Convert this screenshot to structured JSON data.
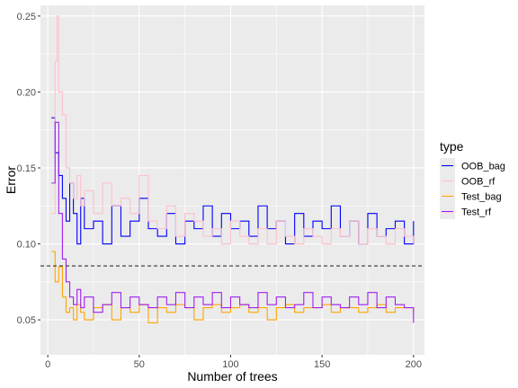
{
  "chart_data": {
    "type": "line",
    "step": true,
    "xlabel": "Number of trees",
    "ylabel": "Error",
    "xlim": [
      -4,
      206
    ],
    "ylim": [
      0.027,
      0.257
    ],
    "x_ticks": [
      0,
      50,
      100,
      150,
      200
    ],
    "y_ticks": [
      0.05,
      0.1,
      0.15,
      0.2,
      0.25
    ],
    "y_tick_labels": [
      "0.05",
      "0.10",
      "0.15",
      "0.20",
      "0.25"
    ],
    "grid": true,
    "background": "#ebebeb",
    "reference_line": {
      "y": 0.0855,
      "style": "dashed",
      "color": "#333333"
    },
    "legend": {
      "title": "type",
      "position": "right"
    },
    "series": [
      {
        "name": "OOB_bag",
        "color": "#0000ff",
        "x": [
          2,
          4,
          6,
          8,
          10,
          12,
          14,
          16,
          18,
          20,
          25,
          30,
          35,
          40,
          45,
          50,
          55,
          60,
          65,
          70,
          75,
          80,
          85,
          90,
          95,
          100,
          105,
          110,
          115,
          120,
          125,
          130,
          135,
          140,
          145,
          150,
          155,
          160,
          165,
          170,
          175,
          180,
          185,
          190,
          195,
          200
        ],
        "values": [
          0.183,
          0.16,
          0.145,
          0.13,
          0.115,
          0.14,
          0.12,
          0.1,
          0.13,
          0.11,
          0.115,
          0.1,
          0.125,
          0.105,
          0.115,
          0.13,
          0.11,
          0.105,
          0.12,
          0.1,
          0.115,
          0.11,
          0.125,
          0.105,
          0.12,
          0.11,
          0.115,
          0.105,
          0.125,
          0.11,
          0.115,
          0.1,
          0.12,
          0.105,
          0.115,
          0.11,
          0.125,
          0.105,
          0.115,
          0.1,
          0.12,
          0.105,
          0.11,
          0.115,
          0.1,
          0.115
        ]
      },
      {
        "name": "OOB_rf",
        "color": "#ffc0cb",
        "x": [
          2,
          4,
          5,
          6,
          8,
          10,
          12,
          14,
          16,
          18,
          20,
          25,
          30,
          35,
          40,
          45,
          50,
          55,
          60,
          65,
          70,
          75,
          80,
          85,
          90,
          95,
          100,
          105,
          110,
          115,
          120,
          125,
          130,
          135,
          140,
          145,
          150,
          155,
          160,
          165,
          170,
          175,
          180,
          185,
          190,
          195,
          200
        ],
        "values": [
          0.12,
          0.22,
          0.25,
          0.2,
          0.185,
          0.15,
          0.14,
          0.13,
          0.145,
          0.125,
          0.135,
          0.12,
          0.14,
          0.125,
          0.13,
          0.12,
          0.145,
          0.115,
          0.11,
          0.125,
          0.105,
          0.12,
          0.115,
          0.105,
          0.11,
          0.1,
          0.115,
          0.105,
          0.1,
          0.11,
          0.1,
          0.115,
          0.105,
          0.1,
          0.11,
          0.105,
          0.1,
          0.11,
          0.105,
          0.115,
          0.1,
          0.11,
          0.105,
          0.1,
          0.11,
          0.105,
          0.1
        ]
      },
      {
        "name": "Test_bag",
        "color": "#ffa500",
        "x": [
          2,
          4,
          6,
          8,
          10,
          12,
          14,
          16,
          18,
          20,
          25,
          30,
          35,
          40,
          45,
          50,
          55,
          60,
          65,
          70,
          75,
          80,
          85,
          90,
          95,
          100,
          105,
          110,
          115,
          120,
          125,
          130,
          135,
          140,
          145,
          150,
          155,
          160,
          165,
          170,
          175,
          180,
          185,
          190,
          195,
          200
        ],
        "values": [
          0.095,
          0.075,
          0.085,
          0.065,
          0.055,
          0.058,
          0.05,
          0.06,
          0.055,
          0.05,
          0.058,
          0.06,
          0.05,
          0.058,
          0.055,
          0.06,
          0.048,
          0.058,
          0.055,
          0.06,
          0.058,
          0.05,
          0.058,
          0.06,
          0.055,
          0.058,
          0.06,
          0.055,
          0.058,
          0.05,
          0.058,
          0.06,
          0.055,
          0.058,
          0.058,
          0.06,
          0.055,
          0.058,
          0.058,
          0.055,
          0.058,
          0.06,
          0.055,
          0.058,
          0.058,
          0.055
        ]
      },
      {
        "name": "Test_rf",
        "color": "#a020f0",
        "x": [
          2,
          4,
          6,
          8,
          10,
          12,
          14,
          16,
          18,
          20,
          25,
          30,
          35,
          40,
          45,
          50,
          55,
          60,
          65,
          70,
          75,
          80,
          85,
          90,
          95,
          100,
          105,
          110,
          115,
          120,
          125,
          130,
          135,
          140,
          145,
          150,
          155,
          160,
          165,
          170,
          175,
          180,
          185,
          190,
          195,
          200
        ],
        "values": [
          0.14,
          0.18,
          0.12,
          0.09,
          0.075,
          0.065,
          0.06,
          0.07,
          0.058,
          0.065,
          0.055,
          0.06,
          0.068,
          0.058,
          0.065,
          0.06,
          0.058,
          0.065,
          0.06,
          0.068,
          0.058,
          0.065,
          0.06,
          0.068,
          0.058,
          0.065,
          0.06,
          0.058,
          0.068,
          0.06,
          0.065,
          0.058,
          0.06,
          0.068,
          0.058,
          0.065,
          0.06,
          0.058,
          0.065,
          0.06,
          0.068,
          0.058,
          0.065,
          0.06,
          0.058,
          0.048
        ]
      }
    ]
  }
}
